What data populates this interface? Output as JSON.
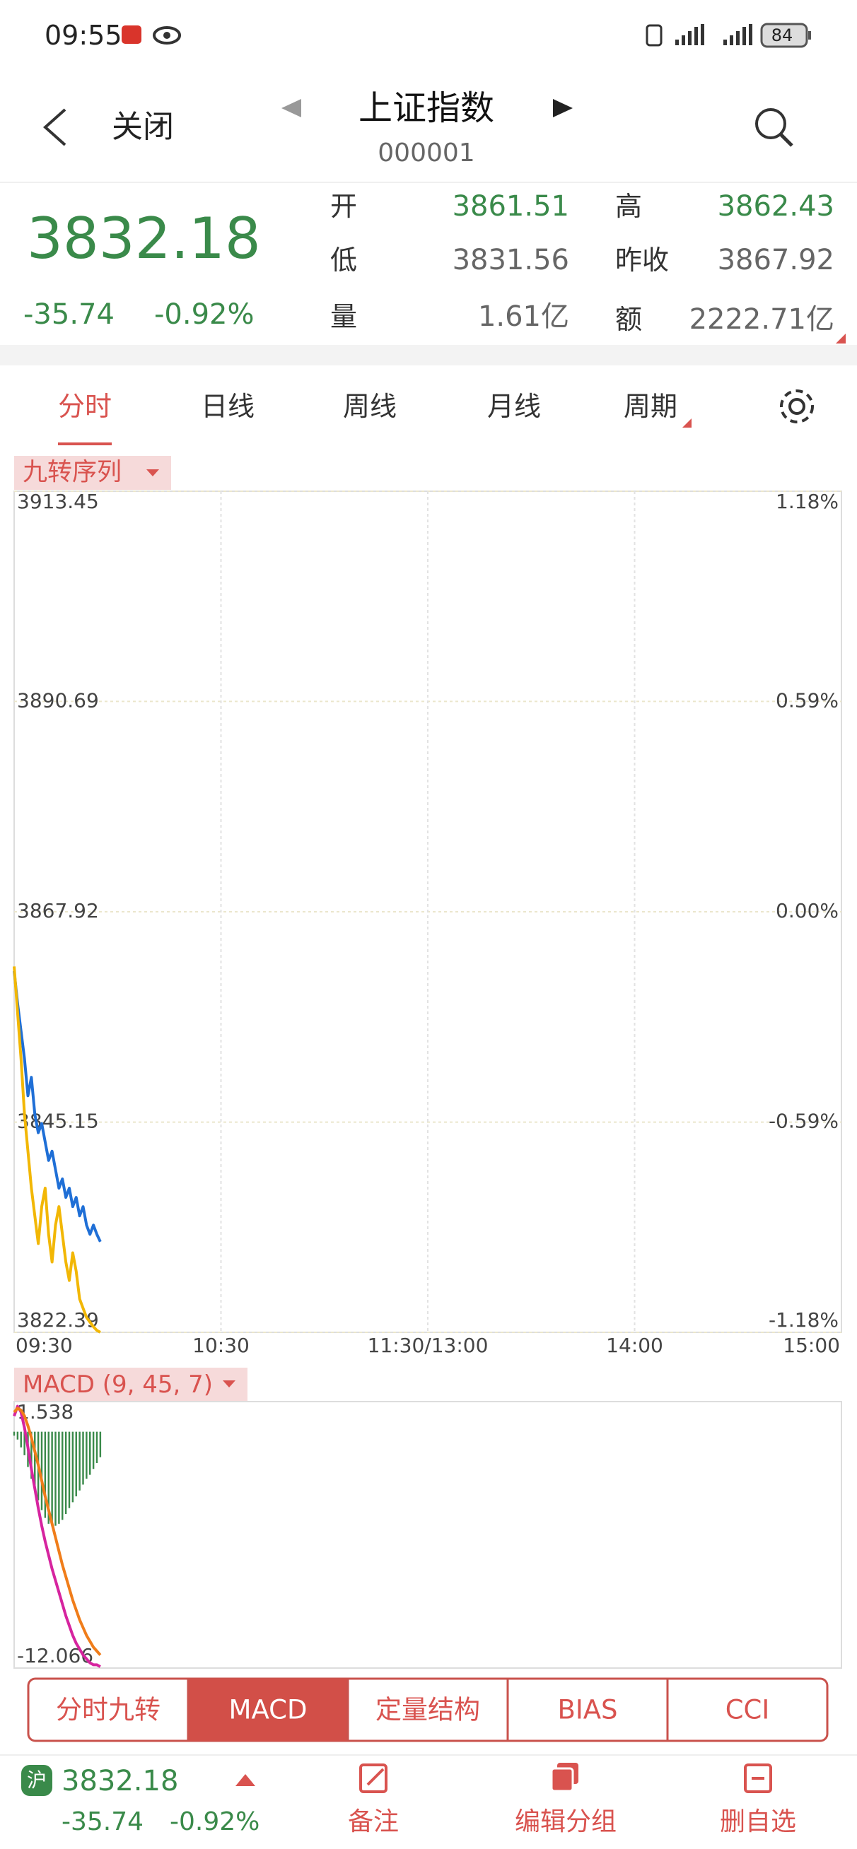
{
  "status_bar": {
    "time": "09:55",
    "battery": "84"
  },
  "header": {
    "back": "关闭",
    "title": "上证指数",
    "code": "000001"
  },
  "quote": {
    "price": "3832.18",
    "change": "-35.74",
    "change_pct": "-0.92%",
    "fields": [
      {
        "label": "开",
        "value": "3861.51"
      },
      {
        "label": "高",
        "value": "3862.43"
      },
      {
        "label": "低",
        "value": "3831.56"
      },
      {
        "label": "昨收",
        "value": "3867.92"
      },
      {
        "label": "量",
        "value": "1.61亿"
      },
      {
        "label": "额",
        "value": "2222.71亿"
      }
    ]
  },
  "tabs": [
    "分时",
    "日线",
    "周线",
    "月线",
    "周期"
  ],
  "chart_data": [
    {
      "type": "line",
      "title": "九转序列",
      "x": [
        0,
        1,
        2,
        3,
        4,
        5,
        6,
        7,
        8,
        9,
        10,
        11,
        12,
        13,
        14,
        15,
        16,
        17,
        18,
        19,
        20,
        21,
        22,
        23,
        24,
        25
      ],
      "xlim": [
        0,
        240
      ],
      "xticks": [
        {
          "value": 0,
          "label": "09:30"
        },
        {
          "value": 60,
          "label": "10:30"
        },
        {
          "value": 120,
          "label": "11:30/13:00"
        },
        {
          "value": 180,
          "label": "14:00"
        },
        {
          "value": 240,
          "label": "15:00"
        }
      ],
      "ylim": [
        3822.39,
        3913.45
      ],
      "yticks": [
        3913.45,
        3890.69,
        3867.92,
        3845.15,
        3822.39
      ],
      "y2lim": [
        -1.18,
        1.18
      ],
      "y2ticks": [
        {
          "value": 1.18,
          "label": "1.18%"
        },
        {
          "value": 0.59,
          "label": "0.59%"
        },
        {
          "value": 0,
          "label": "0.00%"
        },
        {
          "value": -0.59,
          "label": "-0.59%"
        },
        {
          "value": -1.18,
          "label": "-1.18%"
        }
      ],
      "grid": true,
      "series": [
        {
          "color": "#1f6fd6",
          "values": [
            3861.5,
            3858,
            3855,
            3852,
            3848,
            3850,
            3846,
            3844,
            3845,
            3843,
            3841,
            3842,
            3840,
            3838,
            3839,
            3837,
            3838,
            3836,
            3837,
            3835,
            3836,
            3834,
            3833,
            3834,
            3833,
            3832.2
          ]
        },
        {
          "color": "#f2b705",
          "values": [
            3862,
            3857,
            3852,
            3846,
            3842,
            3838,
            3835,
            3832,
            3836,
            3838,
            3833,
            3830,
            3834,
            3836,
            3833,
            3830,
            3828,
            3831,
            3829,
            3826,
            3825,
            3824,
            3823.5,
            3823,
            3822.6,
            3822.4
          ]
        }
      ]
    },
    {
      "type": "macd",
      "title": "MACD (9, 45, 7)",
      "x": [
        0,
        1,
        2,
        3,
        4,
        5,
        6,
        7,
        8,
        9,
        10,
        11,
        12,
        13,
        14,
        15,
        16,
        17,
        18,
        19,
        20,
        21,
        22,
        23,
        24,
        25
      ],
      "xlim": [
        0,
        240
      ],
      "ylim": [
        -12.066,
        1.538
      ],
      "yticks": [
        1.538,
        -12.066
      ],
      "series": [
        {
          "type": "bar",
          "color": "#3a8a4a",
          "values": [
            -0.2,
            -0.4,
            -0.8,
            -1.2,
            -1.8,
            -2.4,
            -3.0,
            -3.5,
            -4.0,
            -4.4,
            -4.7,
            -4.8,
            -4.8,
            -4.7,
            -4.5,
            -4.2,
            -3.9,
            -3.6,
            -3.3,
            -3.0,
            -2.7,
            -2.4,
            -2.2,
            -1.9,
            -1.6,
            -1.3
          ]
        },
        {
          "type": "line",
          "color": "#d6249f",
          "values": [
            0.8,
            1.3,
            1.0,
            0.2,
            -0.8,
            -1.9,
            -2.9,
            -3.9,
            -4.8,
            -5.6,
            -6.3,
            -7.0,
            -7.6,
            -8.2,
            -8.8,
            -9.4,
            -9.9,
            -10.4,
            -10.8,
            -11.1,
            -11.4,
            -11.6,
            -11.8,
            -11.9,
            -11.9,
            -12.0
          ]
        },
        {
          "type": "line",
          "color": "#f07d1a",
          "values": [
            1.0,
            1.2,
            1.1,
            0.8,
            0.3,
            -0.3,
            -1.0,
            -1.7,
            -2.5,
            -3.3,
            -4.0,
            -4.7,
            -5.4,
            -6.1,
            -6.8,
            -7.4,
            -8.0,
            -8.6,
            -9.1,
            -9.6,
            -10.0,
            -10.4,
            -10.7,
            -11.0,
            -11.2,
            -11.4
          ]
        }
      ]
    }
  ],
  "indicator_tabs": [
    "分时九转",
    "MACD",
    "定量结构",
    "BIAS",
    "CCI"
  ],
  "bottom_bar": {
    "badge": "沪",
    "price": "3832.18",
    "change": "-35.74",
    "change_pct": "-0.92%",
    "actions": [
      "备注",
      "编辑分组",
      "删自选"
    ]
  }
}
